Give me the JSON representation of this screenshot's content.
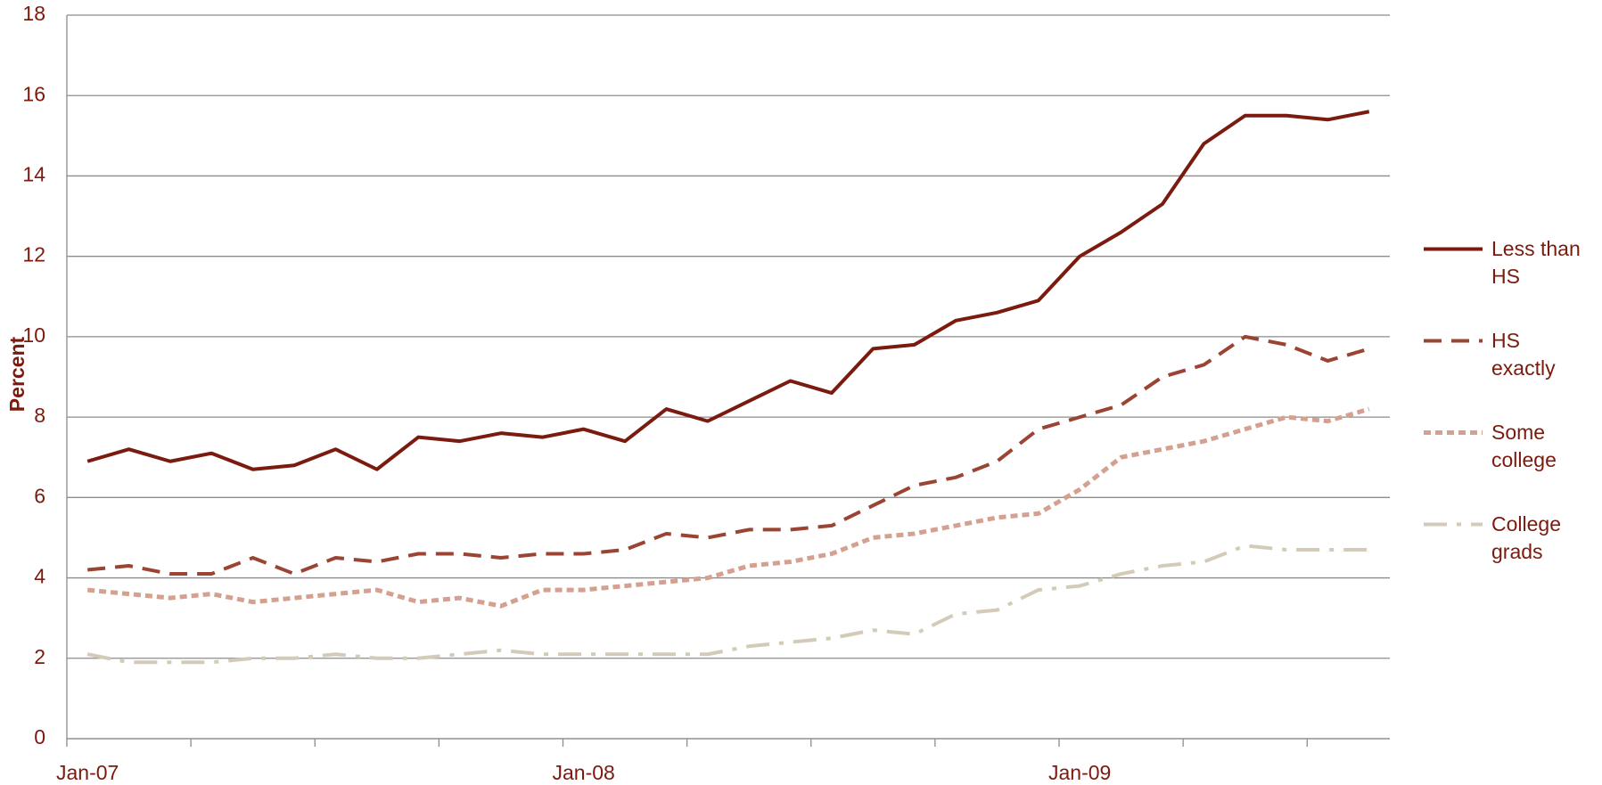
{
  "chart_data": {
    "type": "line",
    "y_label": "Percent",
    "categories": [
      "Jan-07",
      null,
      null,
      null,
      null,
      null,
      null,
      null,
      null,
      null,
      null,
      null,
      "Jan-08",
      null,
      null,
      null,
      null,
      null,
      null,
      null,
      null,
      null,
      null,
      null,
      "Jan-09",
      null,
      null,
      null,
      null,
      null,
      null,
      null
    ],
    "series": [
      {
        "name": "Less than HS",
        "color": "#7b1a0e",
        "dash": "solid",
        "values": [
          6.9,
          7.2,
          6.9,
          7.1,
          6.7,
          6.8,
          7.2,
          6.7,
          7.5,
          7.4,
          7.6,
          7.5,
          7.7,
          7.4,
          8.2,
          7.9,
          8.4,
          8.9,
          8.6,
          9.7,
          9.8,
          10.4,
          10.6,
          10.9,
          12.0,
          12.6,
          13.3,
          14.8,
          15.5,
          15.5,
          15.4,
          15.6
        ]
      },
      {
        "name": "HS exactly",
        "color": "#9b4433",
        "dash": "dashed",
        "values": [
          4.2,
          4.3,
          4.1,
          4.1,
          4.5,
          4.1,
          4.5,
          4.4,
          4.6,
          4.6,
          4.5,
          4.6,
          4.6,
          4.7,
          5.1,
          5.0,
          5.2,
          5.2,
          5.3,
          5.8,
          6.3,
          6.5,
          6.9,
          7.7,
          8.0,
          8.3,
          9.0,
          9.3,
          10.0,
          9.8,
          9.4,
          9.7
        ]
      },
      {
        "name": "Some college",
        "color": "#d4a08f",
        "dash": "dotted",
        "values": [
          3.7,
          3.6,
          3.5,
          3.6,
          3.4,
          3.5,
          3.6,
          3.7,
          3.4,
          3.5,
          3.3,
          3.7,
          3.7,
          3.8,
          3.9,
          4.0,
          4.3,
          4.4,
          4.6,
          5.0,
          5.1,
          5.3,
          5.5,
          5.6,
          6.2,
          7.0,
          7.2,
          7.4,
          7.7,
          8.0,
          7.9,
          8.2
        ]
      },
      {
        "name": "College grads",
        "color": "#d3cbb8",
        "dash": "dashdot",
        "values": [
          2.1,
          1.9,
          1.9,
          1.9,
          2.0,
          2.0,
          2.1,
          2.0,
          2.0,
          2.1,
          2.2,
          2.1,
          2.1,
          2.1,
          2.1,
          2.1,
          2.3,
          2.4,
          2.5,
          2.7,
          2.6,
          3.1,
          3.2,
          3.7,
          3.8,
          4.1,
          4.3,
          4.4,
          4.8,
          4.7,
          4.7,
          4.7
        ]
      }
    ],
    "ylim": [
      0,
      18
    ],
    "yticks": [
      0,
      2,
      4,
      6,
      8,
      10,
      12,
      14,
      16,
      18
    ],
    "grid": true,
    "legend": "right"
  }
}
